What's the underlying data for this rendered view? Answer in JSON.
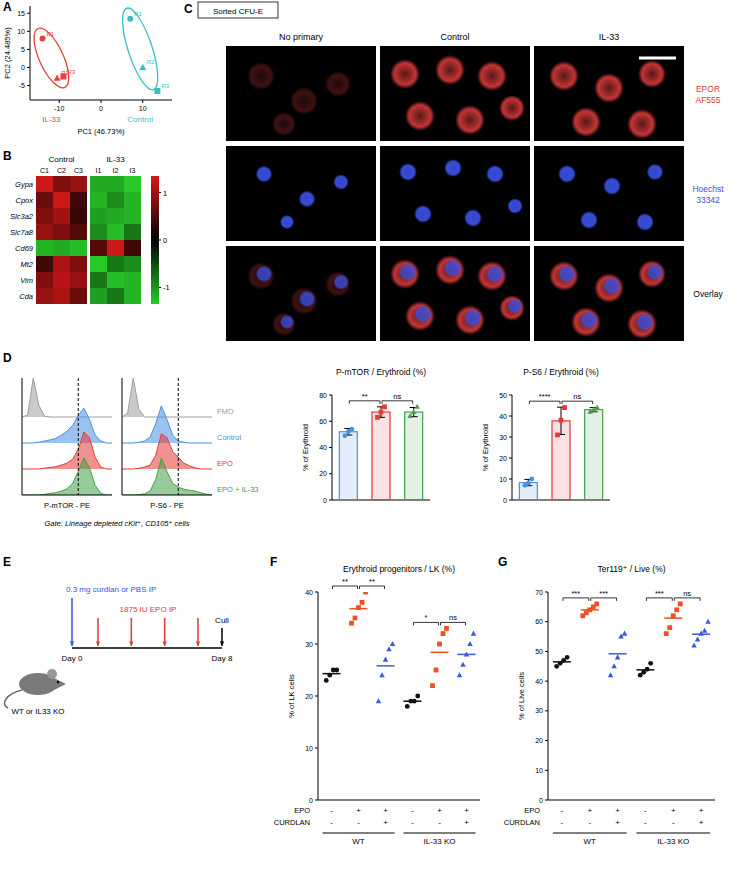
{
  "panel_labels": [
    "A",
    "B",
    "C",
    "D",
    "E",
    "F",
    "G"
  ],
  "chart_data": [
    {
      "type": "scatter",
      "xlabel": "PC1 (46.73%)",
      "ylabel": "PC2 (24.485%)",
      "xlim": [
        -17,
        17
      ],
      "ylim": [
        -9,
        17
      ],
      "xticks": [
        -10,
        0,
        10
      ],
      "yticks": [
        -5,
        0,
        5,
        10,
        15
      ],
      "series": [
        {
          "name": "IL-33",
          "color": "#e5403a",
          "x": [
            -14,
            -10.5,
            -9
          ],
          "values": [
            8,
            -3,
            -2.5
          ],
          "point_labels": [
            "R1",
            "R2",
            "R3"
          ]
        },
        {
          "name": "Control",
          "color": "#35bfc4",
          "x": [
            7,
            10,
            13.5
          ],
          "values": [
            13.5,
            0,
            -6.5
          ],
          "point_labels": [
            "R1",
            "R2",
            "R3"
          ]
        }
      ]
    },
    {
      "type": "heatmap",
      "rows": [
        "Gypa",
        "Cpox",
        "Slc3a2",
        "Slc7a8",
        "Cd69",
        "Mt2",
        "Vim",
        "Cda"
      ],
      "columns": [
        "C1",
        "C2",
        "C3",
        "I1",
        "I2",
        "I3"
      ],
      "column_groups": [
        {
          "label": "Control",
          "columns": [
            "C1",
            "C2",
            "C3"
          ]
        },
        {
          "label": "IL-33",
          "columns": [
            "I1",
            "I2",
            "I3"
          ]
        }
      ],
      "cells": [
        [
          0.95,
          0.6,
          0.7,
          -0.85,
          -0.85,
          -1.0
        ],
        [
          0.5,
          0.95,
          0.3,
          -0.9,
          -0.7,
          -0.9
        ],
        [
          0.6,
          0.75,
          0.25,
          -0.8,
          -0.85,
          -0.9
        ],
        [
          0.7,
          0.6,
          0.4,
          -0.7,
          -0.95,
          -0.6
        ],
        [
          -0.9,
          -0.85,
          -0.95,
          0.4,
          0.95,
          0.3
        ],
        [
          0.3,
          0.8,
          0.6,
          -1.0,
          -0.6,
          -0.7
        ],
        [
          0.6,
          0.85,
          0.7,
          -0.6,
          -0.95,
          -0.9
        ],
        [
          0.7,
          0.8,
          0.5,
          -0.8,
          -0.6,
          -0.9
        ]
      ],
      "colorbar": {
        "range": [
          -1.35,
          1.35
        ],
        "ticks": [
          1,
          0,
          -1
        ]
      }
    },
    {
      "type": "density",
      "xlabel": "P-mTOR - PE",
      "x": [
        0,
        1,
        2,
        3,
        4,
        5,
        6,
        7,
        8,
        9,
        10,
        11,
        12,
        13,
        14,
        15,
        16
      ],
      "xlim": [
        0,
        16
      ],
      "ylim": [
        0,
        1
      ],
      "tick_labels": false,
      "gate_x": 10,
      "series": [
        {
          "name": "FMO",
          "color": "#9e9e9e",
          "values": [
            0,
            0.05,
            1,
            0.3,
            0.02,
            0,
            0,
            0,
            0,
            0,
            0,
            0,
            0,
            0,
            0,
            0,
            0
          ]
        },
        {
          "name": "Control",
          "color": "#4a90e2",
          "values": [
            0,
            0,
            0,
            0.02,
            0.05,
            0.08,
            0.12,
            0.2,
            0.3,
            0.45,
            0.7,
            0.9,
            0.6,
            0.2,
            0.05,
            0,
            0
          ]
        },
        {
          "name": "EPO",
          "color": "#e53935",
          "values": [
            0,
            0,
            0,
            0,
            0.02,
            0.04,
            0.06,
            0.1,
            0.15,
            0.25,
            0.5,
            0.95,
            0.8,
            0.3,
            0.05,
            0,
            0
          ]
        },
        {
          "name": "EPO + IL-33",
          "color": "#43a047",
          "values": [
            0,
            0,
            0,
            0,
            0.02,
            0.04,
            0.06,
            0.1,
            0.16,
            0.3,
            0.6,
            0.95,
            0.7,
            0.25,
            0.04,
            0,
            0
          ]
        }
      ]
    },
    {
      "type": "density",
      "xlabel": "P-S6 - PE",
      "x": [
        0,
        1,
        2,
        3,
        4,
        5,
        6,
        7,
        8,
        9,
        10,
        11,
        12,
        13,
        14,
        15,
        16
      ],
      "xlim": [
        0,
        16
      ],
      "ylim": [
        0,
        1
      ],
      "tick_labels": false,
      "gate_x": 10,
      "legend": "right",
      "series": [
        {
          "name": "FMO",
          "color": "#9e9e9e",
          "values": [
            0,
            0.1,
            1,
            0.2,
            0,
            0,
            0,
            0,
            0,
            0,
            0,
            0,
            0,
            0,
            0,
            0,
            0
          ]
        },
        {
          "name": "Control",
          "color": "#4a90e2",
          "values": [
            0,
            0,
            0,
            0.02,
            0.05,
            0.15,
            0.5,
            0.95,
            0.6,
            0.2,
            0.05,
            0.02,
            0,
            0,
            0,
            0,
            0
          ]
        },
        {
          "name": "EPO",
          "color": "#e53935",
          "values": [
            0,
            0,
            0,
            0.02,
            0.05,
            0.1,
            0.35,
            0.9,
            0.8,
            0.45,
            0.3,
            0.15,
            0.08,
            0.03,
            0,
            0,
            0
          ]
        },
        {
          "name": "EPO + IL-33",
          "color": "#43a047",
          "values": [
            0,
            0,
            0,
            0.01,
            0.03,
            0.1,
            0.4,
            0.95,
            0.6,
            0.3,
            0.2,
            0.15,
            0.12,
            0.1,
            0.06,
            0.02,
            0
          ]
        }
      ]
    },
    {
      "type": "bar",
      "title": "P-mTOR / Erythroid (%)",
      "ylabel": "% of Erythroid",
      "categories": [
        null,
        null,
        null
      ],
      "values": [
        52,
        67,
        67
      ],
      "errors": [
        2.5,
        4,
        3.5
      ],
      "points": [
        [
          49,
          52,
          54
        ],
        [
          63,
          67,
          71
        ],
        [
          64,
          67,
          71
        ]
      ],
      "colors": [
        "#4a90e2",
        "#e53935",
        "#43a047"
      ],
      "ylim": [
        0,
        80
      ],
      "yticks": [
        0,
        20,
        40,
        60,
        80
      ],
      "tick_labels": "y",
      "significance": [
        {
          "pair": [
            0,
            1
          ],
          "label": "**"
        },
        {
          "pair": [
            1,
            2
          ],
          "label": "ns"
        }
      ]
    },
    {
      "type": "bar",
      "title": "P-S6 / Erythroid (%)",
      "ylabel": "% of Erythroid",
      "categories": [
        null,
        null,
        null
      ],
      "values": [
        8.3,
        37.7,
        43
      ],
      "errors": [
        1.5,
        6.5,
        1
      ],
      "points": [
        [
          7,
          8,
          10
        ],
        [
          31,
          38,
          44
        ],
        [
          42,
          43,
          44
        ]
      ],
      "colors": [
        "#4a90e2",
        "#e53935",
        "#43a047"
      ],
      "ylim": [
        0,
        50
      ],
      "yticks": [
        0,
        10,
        20,
        30,
        40,
        50
      ],
      "tick_labels": "y",
      "significance": [
        {
          "pair": [
            0,
            1
          ],
          "label": "****"
        },
        {
          "pair": [
            1,
            2
          ],
          "label": "ns"
        }
      ]
    },
    {
      "type": "dot",
      "title": "Erythroid progenitors / LK (%)",
      "ylabel": "% of LK cells",
      "categories": [
        null,
        null,
        null,
        null,
        null,
        null
      ],
      "values": [
        24.3,
        36.8,
        25.8,
        19,
        28.4,
        28
      ],
      "points": [
        [
          23,
          24,
          25,
          25
        ],
        [
          34,
          35,
          37,
          38,
          40
        ],
        [
          19,
          24,
          27,
          29,
          30
        ],
        [
          18,
          19,
          19,
          20
        ],
        [
          22,
          25,
          30,
          32,
          33
        ],
        [
          24,
          26,
          28,
          30,
          32
        ]
      ],
      "colors": [
        "#111111",
        "#f04e23",
        "#3a5bd9",
        "#111111",
        "#f04e23",
        "#3a5bd9"
      ],
      "ylim": [
        0,
        40
      ],
      "yticks": [
        0,
        10,
        20,
        30,
        40
      ],
      "tick_labels": "y",
      "conditions": [
        {
          "name": "EPO",
          "marks": [
            "-",
            "+",
            "+",
            "-",
            "+",
            "+"
          ]
        },
        {
          "name": "CURDLAN",
          "marks": [
            "-",
            "-",
            "+",
            "-",
            "-",
            "+"
          ]
        }
      ],
      "groups": [
        {
          "label": "WT",
          "size": 3
        },
        {
          "label": "IL-33 KO",
          "size": 3
        }
      ],
      "significance": [
        {
          "pair": [
            0,
            1
          ],
          "label": "**"
        },
        {
          "pair": [
            1,
            2
          ],
          "label": "**"
        },
        {
          "pair": [
            3,
            4
          ],
          "label": "*"
        },
        {
          "pair": [
            4,
            5
          ],
          "label": "ns"
        }
      ]
    },
    {
      "type": "dot",
      "title": "Ter119⁺ / Live (%)",
      "ylabel": "% of Live cells",
      "categories": [
        null,
        null,
        null,
        null,
        null,
        null
      ],
      "values": [
        46.5,
        64,
        49.2,
        43.8,
        61.2,
        55.8
      ],
      "points": [
        [
          45,
          46,
          47,
          48
        ],
        [
          62,
          63,
          64,
          65,
          66
        ],
        [
          42,
          45,
          48,
          55,
          56
        ],
        [
          42,
          43,
          44,
          46
        ],
        [
          56,
          58,
          62,
          64,
          66
        ],
        [
          52,
          54,
          56,
          57,
          60
        ]
      ],
      "colors": [
        "#111111",
        "#f04e23",
        "#3a5bd9",
        "#111111",
        "#f04e23",
        "#3a5bd9"
      ],
      "ylim": [
        0,
        70
      ],
      "yticks": [
        0,
        10,
        20,
        30,
        40,
        50,
        60,
        70
      ],
      "tick_labels": "y",
      "conditions": [
        {
          "name": "EPO",
          "marks": [
            "-",
            "+",
            "+",
            "-",
            "+",
            "+"
          ]
        },
        {
          "name": "CURDLAN",
          "marks": [
            "-",
            "-",
            "+",
            "-",
            "-",
            "+"
          ]
        }
      ],
      "groups": [
        {
          "label": "WT",
          "size": 3
        },
        {
          "label": "IL-33 KO",
          "size": 3
        }
      ],
      "significance": [
        {
          "pair": [
            0,
            1
          ],
          "label": "***"
        },
        {
          "pair": [
            1,
            2
          ],
          "label": "***"
        },
        {
          "pair": [
            3,
            4
          ],
          "label": "***"
        },
        {
          "pair": [
            4,
            5
          ],
          "label": "ns"
        }
      ]
    }
  ],
  "microscopy": {
    "tag": "Sorted CFU-E",
    "columns": [
      "No primary",
      "Control",
      "IL-33"
    ],
    "rows": [
      {
        "label": [
          "EPOR",
          "AF555"
        ],
        "color": "#d83a3a"
      },
      {
        "label": [
          "Hoechst",
          "33342"
        ],
        "color": "#3a4fe0"
      },
      {
        "label": [
          "Overlay"
        ]
      }
    ]
  },
  "gate_note": "Gate: Lineage depleted cKit⁺, CD105⁺ cells",
  "schematic": {
    "pre_treatment": "0.3 mg curdlan or PBS IP",
    "treatment": "1875 IU EPO IP",
    "start": "Day 0",
    "end": "Day 8",
    "endpoint": "Cull",
    "mice": "WT or IL33 KO",
    "treatment_doses": 4
  }
}
